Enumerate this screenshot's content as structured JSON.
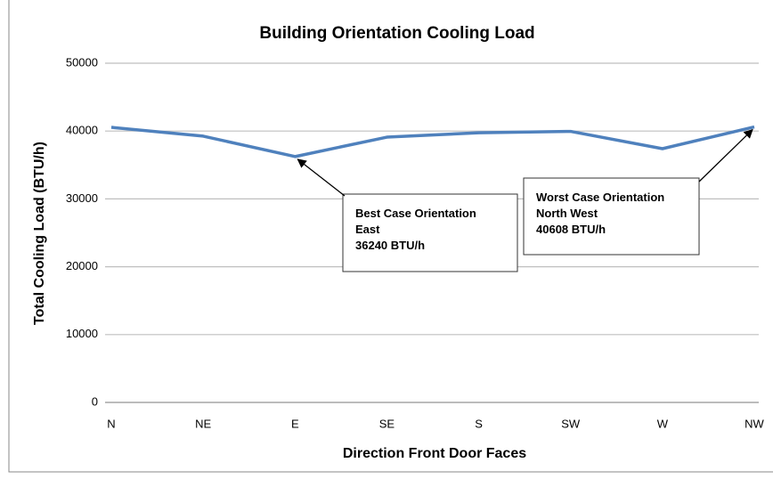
{
  "chart_data": {
    "type": "line",
    "title": "Building Orientation Cooling Load",
    "x_label": "Direction Front Door Faces",
    "y_label": "Total Cooling Load (BTU/h)",
    "categories": [
      "N",
      "NE",
      "E",
      "SE",
      "S",
      "SW",
      "W",
      "NW"
    ],
    "series": [
      {
        "name": "Total Cooling Load",
        "color": "#4f81bd",
        "values": [
          40550,
          39250,
          36240,
          39100,
          39750,
          39950,
          37400,
          40608
        ]
      }
    ],
    "ylim": [
      0,
      50000
    ],
    "yticks": [
      0,
      10000,
      20000,
      30000,
      40000,
      50000
    ],
    "grid": true,
    "annotations": [
      {
        "x": "E",
        "lines": [
          "Best Case Orientation",
          "East",
          "36240 BTU/h"
        ]
      },
      {
        "x": "NW",
        "lines": [
          "Worst Case Orientation",
          "North West",
          "40608 BTU/h"
        ]
      }
    ]
  }
}
